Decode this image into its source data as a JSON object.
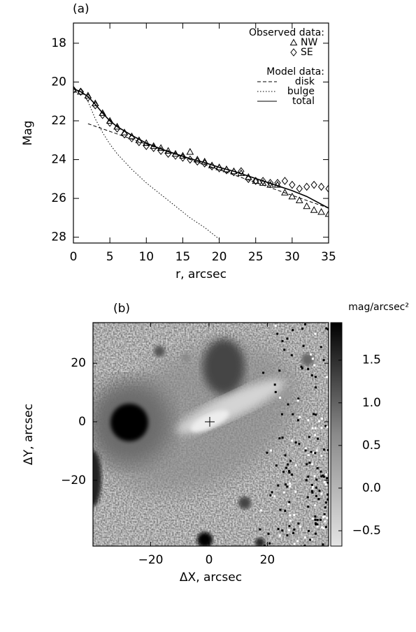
{
  "chart_data": [
    {
      "type": "scatter",
      "title": "(a)",
      "xlabel": "r, arcsec",
      "ylabel": "Mag",
      "xlim": [
        0,
        35
      ],
      "ylim": [
        28.3,
        16.96
      ],
      "xticks": [
        0,
        5,
        10,
        15,
        20,
        25,
        30,
        35
      ],
      "yticks": [
        18,
        20,
        22,
        24,
        26,
        28
      ],
      "legend_titles": [
        "Observed data:",
        "Model data:"
      ],
      "legend": "upper right",
      "series": [
        {
          "name": "NW",
          "marker": "triangle",
          "color": "#000000",
          "x": [
            0,
            1,
            2,
            3,
            4,
            5,
            6,
            7,
            8,
            9,
            10,
            11,
            12,
            13,
            14,
            15,
            16,
            17,
            18,
            19,
            20,
            21,
            22,
            23,
            24,
            25,
            26,
            27,
            28,
            29,
            30,
            31,
            32,
            33,
            34,
            35
          ],
          "values": [
            20.4,
            20.5,
            20.7,
            21.1,
            21.6,
            22.0,
            22.3,
            22.6,
            22.8,
            23.0,
            23.15,
            23.3,
            23.4,
            23.55,
            23.7,
            23.8,
            23.6,
            24.0,
            24.1,
            24.3,
            24.4,
            24.5,
            24.6,
            24.7,
            24.9,
            25.1,
            25.2,
            25.3,
            25.3,
            25.7,
            25.9,
            26.1,
            26.4,
            26.6,
            26.7,
            26.8
          ]
        },
        {
          "name": "SE",
          "marker": "diamond",
          "color": "#000000",
          "x": [
            0,
            1,
            2,
            3,
            4,
            5,
            6,
            7,
            8,
            9,
            10,
            11,
            12,
            13,
            14,
            15,
            16,
            17,
            18,
            19,
            20,
            21,
            22,
            23,
            24,
            25,
            26,
            27,
            28,
            29,
            30,
            31,
            32,
            33,
            34,
            35
          ],
          "values": [
            20.4,
            20.5,
            20.8,
            21.2,
            21.7,
            22.1,
            22.4,
            22.7,
            22.9,
            23.1,
            23.3,
            23.4,
            23.55,
            23.7,
            23.8,
            23.9,
            24.0,
            24.1,
            24.2,
            24.35,
            24.45,
            24.55,
            24.65,
            24.6,
            25.0,
            25.1,
            25.1,
            25.2,
            25.2,
            25.1,
            25.3,
            25.5,
            25.4,
            25.3,
            25.4,
            25.5
          ]
        },
        {
          "name": "disk",
          "dash": "dashed",
          "color": "#000000",
          "x": [
            2,
            35
          ],
          "values": [
            22.15,
            26.5
          ]
        },
        {
          "name": "bulge",
          "dash": "dotted",
          "color": "#000000",
          "x": [
            2,
            3,
            4,
            5,
            6,
            8,
            10,
            12,
            14,
            16,
            18,
            20
          ],
          "values": [
            21.0,
            21.9,
            22.6,
            23.2,
            23.7,
            24.5,
            25.2,
            25.8,
            26.4,
            27.0,
            27.5,
            28.1
          ]
        },
        {
          "name": "total",
          "dash": "solid",
          "color": "#000000",
          "x": [
            0,
            1,
            2,
            3,
            4,
            5,
            6,
            8,
            10,
            12,
            14,
            16,
            18,
            20,
            22,
            24,
            26,
            28,
            30,
            32,
            35
          ],
          "values": [
            20.35,
            20.5,
            20.75,
            21.15,
            21.6,
            22.0,
            22.3,
            22.75,
            23.15,
            23.45,
            23.7,
            23.95,
            24.15,
            24.4,
            24.6,
            24.85,
            25.1,
            25.35,
            25.6,
            25.9,
            26.5
          ]
        }
      ]
    },
    {
      "type": "image",
      "title": "(b)",
      "xlabel": "ΔX, arcsec",
      "ylabel": "ΔY, arcsec",
      "colorbar_label": "mag/arcsec²",
      "xlim": [
        -39.8,
        41
      ],
      "ylim": [
        -42.5,
        33.9
      ],
      "xticks": [
        {
          "value": -20,
          "label": "−20"
        },
        0,
        20
      ],
      "yticks": [
        {
          "value": -20,
          "label": "−20"
        },
        0,
        20
      ],
      "clim": [
        -0.68,
        1.94
      ],
      "cticks": [
        {
          "value": -0.5,
          "label": "−0.5"
        },
        {
          "value": 0,
          "label": "0.0"
        },
        0.5,
        {
          "value": 1,
          "label": "1.0"
        },
        1.5
      ]
    }
  ]
}
